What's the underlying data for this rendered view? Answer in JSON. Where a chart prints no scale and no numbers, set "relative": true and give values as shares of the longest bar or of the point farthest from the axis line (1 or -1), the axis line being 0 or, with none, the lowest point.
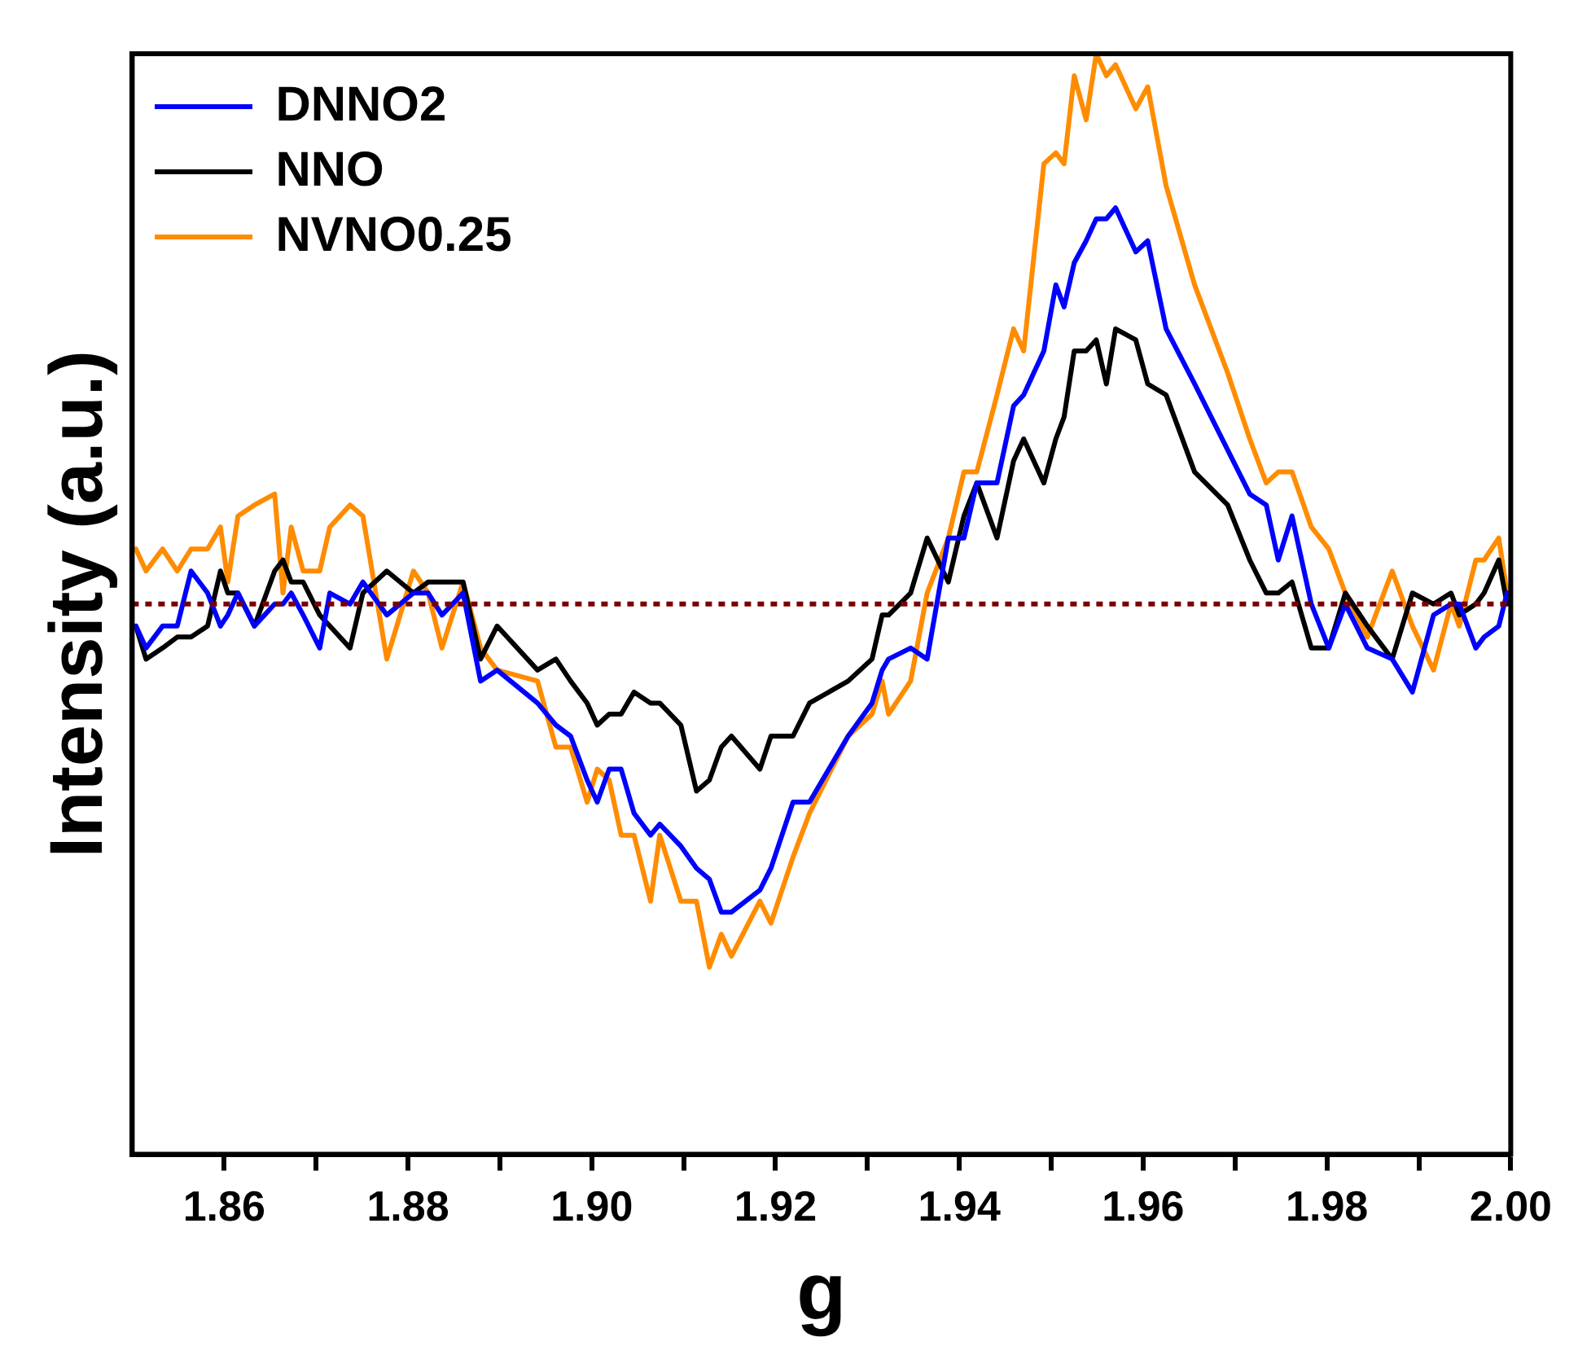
{
  "chart_data": {
    "type": "line",
    "xlabel": "g",
    "ylabel": "Intensity (a.u.)",
    "relative": true,
    "legend": "top left",
    "xlim": [
      1.85,
      2.0
    ],
    "xticks": [
      1.86,
      {
        "value": 1.87,
        "label": null
      },
      1.88,
      {
        "value": 1.89,
        "label": null
      },
      {
        "value": 1.9,
        "label": "1.90"
      },
      {
        "value": 1.91,
        "label": null
      },
      1.92,
      {
        "value": 1.93,
        "label": null
      },
      1.94,
      {
        "value": 1.95,
        "label": null
      },
      1.96,
      {
        "value": 1.97,
        "label": null
      },
      1.98,
      {
        "value": 1.99,
        "label": null
      },
      {
        "value": 2.0,
        "label": "2.00"
      }
    ],
    "x": [
      1.8504,
      1.8515,
      1.8533,
      1.8549,
      1.8564,
      1.8582,
      1.8596,
      1.8604,
      1.8615,
      1.8633,
      1.8655,
      1.8664,
      1.8673,
      1.8686,
      1.8704,
      1.8715,
      1.8737,
      1.8751,
      1.8777,
      1.8806,
      1.8822,
      1.8837,
      1.886,
      1.8879,
      1.8897,
      1.8941,
      1.8961,
      1.8977,
      1.8995,
      1.9006,
      1.9019,
      1.9032,
      1.9046,
      1.9064,
      1.9074,
      1.9097,
      1.9114,
      1.9128,
      1.9141,
      1.9152,
      1.9183,
      1.9195,
      1.9219,
      1.9237,
      1.9279,
      1.9305,
      1.9316,
      1.9323,
      1.9347,
      1.9365,
      1.9388,
      1.9405,
      1.9419,
      1.9441,
      1.9459,
      1.947,
      1.9492,
      1.9505,
      1.9514,
      1.9525,
      1.9538,
      1.9549,
      1.956,
      1.957,
      1.9592,
      1.9605,
      1.9625,
      1.9656,
      1.9692,
      1.9716,
      1.9734,
      1.9747,
      1.9762,
      1.9783,
      1.9802,
      1.982,
      1.9844,
      1.9871,
      1.9893,
      1.9916,
      1.9935,
      1.9944,
      1.9962,
      1.9971,
      1.9987,
      1.9996
    ],
    "series": [
      {
        "name": "DNNO2",
        "color": "#0000ff",
        "values": [
          0.48,
          0.46,
          0.48,
          0.48,
          0.53,
          0.51,
          0.48,
          0.49,
          0.51,
          0.48,
          0.5,
          0.5,
          0.51,
          0.49,
          0.46,
          0.51,
          0.5,
          0.52,
          0.49,
          0.51,
          0.51,
          0.49,
          0.51,
          0.43,
          0.44,
          0.41,
          0.39,
          0.38,
          0.34,
          0.32,
          0.35,
          0.35,
          0.31,
          0.29,
          0.3,
          0.28,
          0.26,
          0.25,
          0.22,
          0.22,
          0.24,
          0.26,
          0.32,
          0.32,
          0.38,
          0.41,
          0.44,
          0.45,
          0.46,
          0.45,
          0.56,
          0.56,
          0.61,
          0.61,
          0.68,
          0.69,
          0.73,
          0.79,
          0.77,
          0.81,
          0.83,
          0.85,
          0.85,
          0.86,
          0.82,
          0.83,
          0.75,
          0.7,
          0.64,
          0.6,
          0.59,
          0.54,
          0.58,
          0.5,
          0.46,
          0.5,
          0.46,
          0.45,
          0.42,
          0.49,
          0.5,
          0.5,
          0.46,
          0.47,
          0.48,
          0.51
        ]
      },
      {
        "name": "NNO",
        "color": "#000000",
        "values": [
          0.48,
          0.45,
          0.46,
          0.47,
          0.47,
          0.48,
          0.53,
          0.51,
          0.51,
          0.48,
          0.53,
          0.54,
          0.52,
          0.52,
          0.49,
          0.48,
          0.46,
          0.51,
          0.53,
          0.51,
          0.52,
          0.52,
          0.52,
          0.45,
          0.48,
          0.44,
          0.45,
          0.43,
          0.41,
          0.39,
          0.4,
          0.4,
          0.42,
          0.41,
          0.41,
          0.39,
          0.33,
          0.34,
          0.37,
          0.38,
          0.35,
          0.38,
          0.38,
          0.41,
          0.43,
          0.45,
          0.49,
          0.49,
          0.51,
          0.56,
          0.52,
          0.58,
          0.61,
          0.56,
          0.63,
          0.65,
          0.61,
          0.65,
          0.67,
          0.73,
          0.73,
          0.74,
          0.7,
          0.75,
          0.74,
          0.7,
          0.69,
          0.62,
          0.59,
          0.54,
          0.51,
          0.51,
          0.52,
          0.46,
          0.46,
          0.51,
          0.48,
          0.45,
          0.51,
          0.5,
          0.51,
          0.49,
          0.5,
          0.51,
          0.54,
          0.5
        ]
      },
      {
        "name": "NVNO0.25",
        "color": "#ff8c00",
        "values": [
          0.55,
          0.53,
          0.55,
          0.53,
          0.55,
          0.55,
          0.57,
          0.52,
          0.58,
          0.59,
          0.6,
          0.51,
          0.57,
          0.53,
          0.53,
          0.57,
          0.59,
          0.58,
          0.45,
          0.53,
          0.51,
          0.46,
          0.52,
          0.46,
          0.44,
          0.43,
          0.37,
          0.37,
          0.32,
          0.35,
          0.34,
          0.29,
          0.29,
          0.23,
          0.29,
          0.23,
          0.23,
          0.17,
          0.2,
          0.18,
          0.23,
          0.21,
          0.27,
          0.31,
          0.38,
          0.4,
          0.43,
          0.4,
          0.43,
          0.51,
          0.56,
          0.62,
          0.62,
          0.69,
          0.75,
          0.73,
          0.9,
          0.91,
          0.9,
          0.98,
          0.94,
          1.0,
          0.98,
          0.99,
          0.95,
          0.97,
          0.88,
          0.79,
          0.71,
          0.65,
          0.61,
          0.62,
          0.62,
          0.57,
          0.55,
          0.51,
          0.47,
          0.53,
          0.48,
          0.44,
          0.5,
          0.48,
          0.54,
          0.54,
          0.56,
          0.51
        ]
      }
    ],
    "ref_lines": [
      {
        "axis": "y",
        "value": 0.5,
        "color": "#7b0000",
        "line_style": "dotted"
      }
    ]
  }
}
